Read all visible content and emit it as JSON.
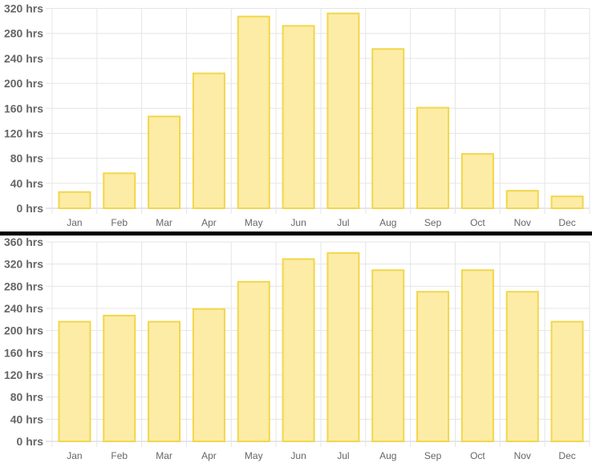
{
  "chart_data": [
    {
      "type": "bar",
      "categories": [
        "Jan",
        "Feb",
        "Mar",
        "Apr",
        "May",
        "Jun",
        "Jul",
        "Aug",
        "Sep",
        "Oct",
        "Nov",
        "Dec"
      ],
      "values": [
        26,
        56,
        147,
        216,
        307,
        292,
        312,
        255,
        161,
        87,
        28,
        19
      ],
      "ylim": [
        0,
        320
      ],
      "yticks": [
        0,
        40,
        80,
        120,
        160,
        200,
        240,
        280,
        320
      ],
      "ytick_labels": [
        "0 hrs",
        "40 hrs",
        "80 hrs",
        "120 hrs",
        "160 hrs",
        "200 hrs",
        "240 hrs",
        "280 hrs",
        "320 hrs"
      ],
      "grid": true,
      "fill_color": "#fdeca6",
      "border_color": "#f2d64b"
    },
    {
      "type": "bar",
      "categories": [
        "Jan",
        "Feb",
        "Mar",
        "Apr",
        "May",
        "Jun",
        "Jul",
        "Aug",
        "Sep",
        "Oct",
        "Nov",
        "Dec"
      ],
      "values": [
        216,
        227,
        216,
        239,
        288,
        329,
        340,
        309,
        270,
        309,
        270,
        216
      ],
      "ylim": [
        0,
        360
      ],
      "yticks": [
        0,
        40,
        80,
        120,
        160,
        200,
        240,
        280,
        320,
        360
      ],
      "ytick_labels": [
        "0 hrs",
        "40 hrs",
        "80 hrs",
        "120 hrs",
        "160 hrs",
        "200 hrs",
        "240 hrs",
        "280 hrs",
        "320 hrs",
        "360 hrs"
      ],
      "grid": true,
      "fill_color": "#fdeca6",
      "border_color": "#f2d64b"
    }
  ]
}
